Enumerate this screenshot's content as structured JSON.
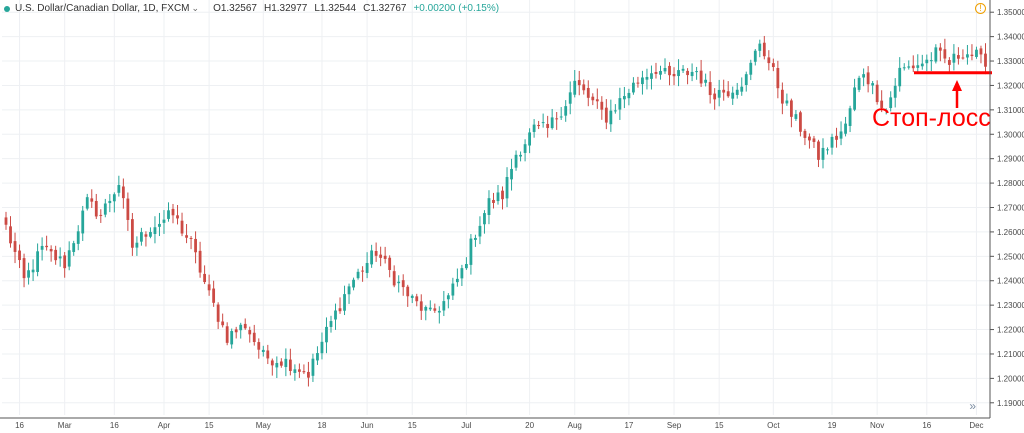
{
  "header": {
    "symbol": "U.S. Dollar/Canadian Dollar, 1D, FXCM",
    "chevron_icon": "chevron-down-icon",
    "open": "O1.32567",
    "high": "H1.32977",
    "low": "L1.32544",
    "close": "C1.32767",
    "change": "+0.00200 (+0.15%)"
  },
  "annotation": {
    "text": "Стоп-лосс",
    "color": "#ff0000",
    "stop_level": 1.3252
  },
  "colors": {
    "up": "#26a69a",
    "down": "#cc4a44",
    "grid": "#eef0f3",
    "axis_text": "#4a4a4a"
  },
  "icons": {
    "expand": "double-chevron-right-icon",
    "clock": "clock-icon"
  },
  "chart_data": {
    "type": "candlestick",
    "ylim": [
      1.185,
      1.355
    ],
    "y_ticks": [
      "1.35000",
      "1.34000",
      "1.33000",
      "1.32000",
      "1.31000",
      "1.30000",
      "1.29000",
      "1.28000",
      "1.27000",
      "1.26000",
      "1.25000",
      "1.24000",
      "1.23000",
      "1.22000",
      "1.21000",
      "1.20000",
      "1.19000"
    ],
    "x_ticks": [
      {
        "label": "16",
        "bar": 3
      },
      {
        "label": "Mar",
        "bar": 13
      },
      {
        "label": "16",
        "bar": 24
      },
      {
        "label": "Apr",
        "bar": 35
      },
      {
        "label": "15",
        "bar": 45
      },
      {
        "label": "May",
        "bar": 57
      },
      {
        "label": "18",
        "bar": 70
      },
      {
        "label": "Jun",
        "bar": 80
      },
      {
        "label": "15",
        "bar": 90
      },
      {
        "label": "Jul",
        "bar": 102
      },
      {
        "label": "20",
        "bar": 116
      },
      {
        "label": "Aug",
        "bar": 126
      },
      {
        "label": "17",
        "bar": 138
      },
      {
        "label": "Sep",
        "bar": 148
      },
      {
        "label": "15",
        "bar": 158
      },
      {
        "label": "Oct",
        "bar": 170
      },
      {
        "label": "19",
        "bar": 183
      },
      {
        "label": "Nov",
        "bar": 193
      },
      {
        "label": "16",
        "bar": 204
      },
      {
        "label": "Dec",
        "bar": 215
      }
    ],
    "close_path": [
      [
        0,
        1.262
      ],
      [
        4,
        1.24
      ],
      [
        8,
        1.253
      ],
      [
        13,
        1.247
      ],
      [
        18,
        1.272
      ],
      [
        21,
        1.267
      ],
      [
        25,
        1.28
      ],
      [
        28,
        1.254
      ],
      [
        32,
        1.262
      ],
      [
        37,
        1.267
      ],
      [
        41,
        1.255
      ],
      [
        45,
        1.234
      ],
      [
        49,
        1.217
      ],
      [
        53,
        1.222
      ],
      [
        57,
        1.209
      ],
      [
        62,
        1.207
      ],
      [
        67,
        1.202
      ],
      [
        71,
        1.219
      ],
      [
        76,
        1.238
      ],
      [
        79,
        1.245
      ],
      [
        82,
        1.252
      ],
      [
        86,
        1.241
      ],
      [
        90,
        1.232
      ],
      [
        94,
        1.226
      ],
      [
        98,
        1.233
      ],
      [
        101,
        1.244
      ],
      [
        104,
        1.26
      ],
      [
        107,
        1.272
      ],
      [
        110,
        1.275
      ],
      [
        113,
        1.292
      ],
      [
        117,
        1.302
      ],
      [
        120,
        1.302
      ],
      [
        124,
        1.313
      ],
      [
        126,
        1.321
      ],
      [
        130,
        1.313
      ],
      [
        133,
        1.307
      ],
      [
        137,
        1.316
      ],
      [
        141,
        1.324
      ],
      [
        144,
        1.327
      ],
      [
        147,
        1.323
      ],
      [
        150,
        1.325
      ],
      [
        153,
        1.326
      ],
      [
        156,
        1.317
      ],
      [
        160,
        1.318
      ],
      [
        164,
        1.323
      ],
      [
        167,
        1.338
      ],
      [
        170,
        1.325
      ],
      [
        172,
        1.315
      ],
      [
        174,
        1.308
      ],
      [
        177,
        1.3
      ],
      [
        180,
        1.291
      ],
      [
        183,
        1.297
      ],
      [
        186,
        1.303
      ],
      [
        188,
        1.318
      ],
      [
        190,
        1.326
      ],
      [
        193,
        1.316
      ],
      [
        195,
        1.31
      ],
      [
        198,
        1.326
      ],
      [
        201,
        1.328
      ],
      [
        204,
        1.33
      ],
      [
        206,
        1.333
      ],
      [
        209,
        1.329
      ],
      [
        212,
        1.334
      ],
      [
        215,
        1.332
      ],
      [
        217,
        1.3277
      ]
    ]
  }
}
